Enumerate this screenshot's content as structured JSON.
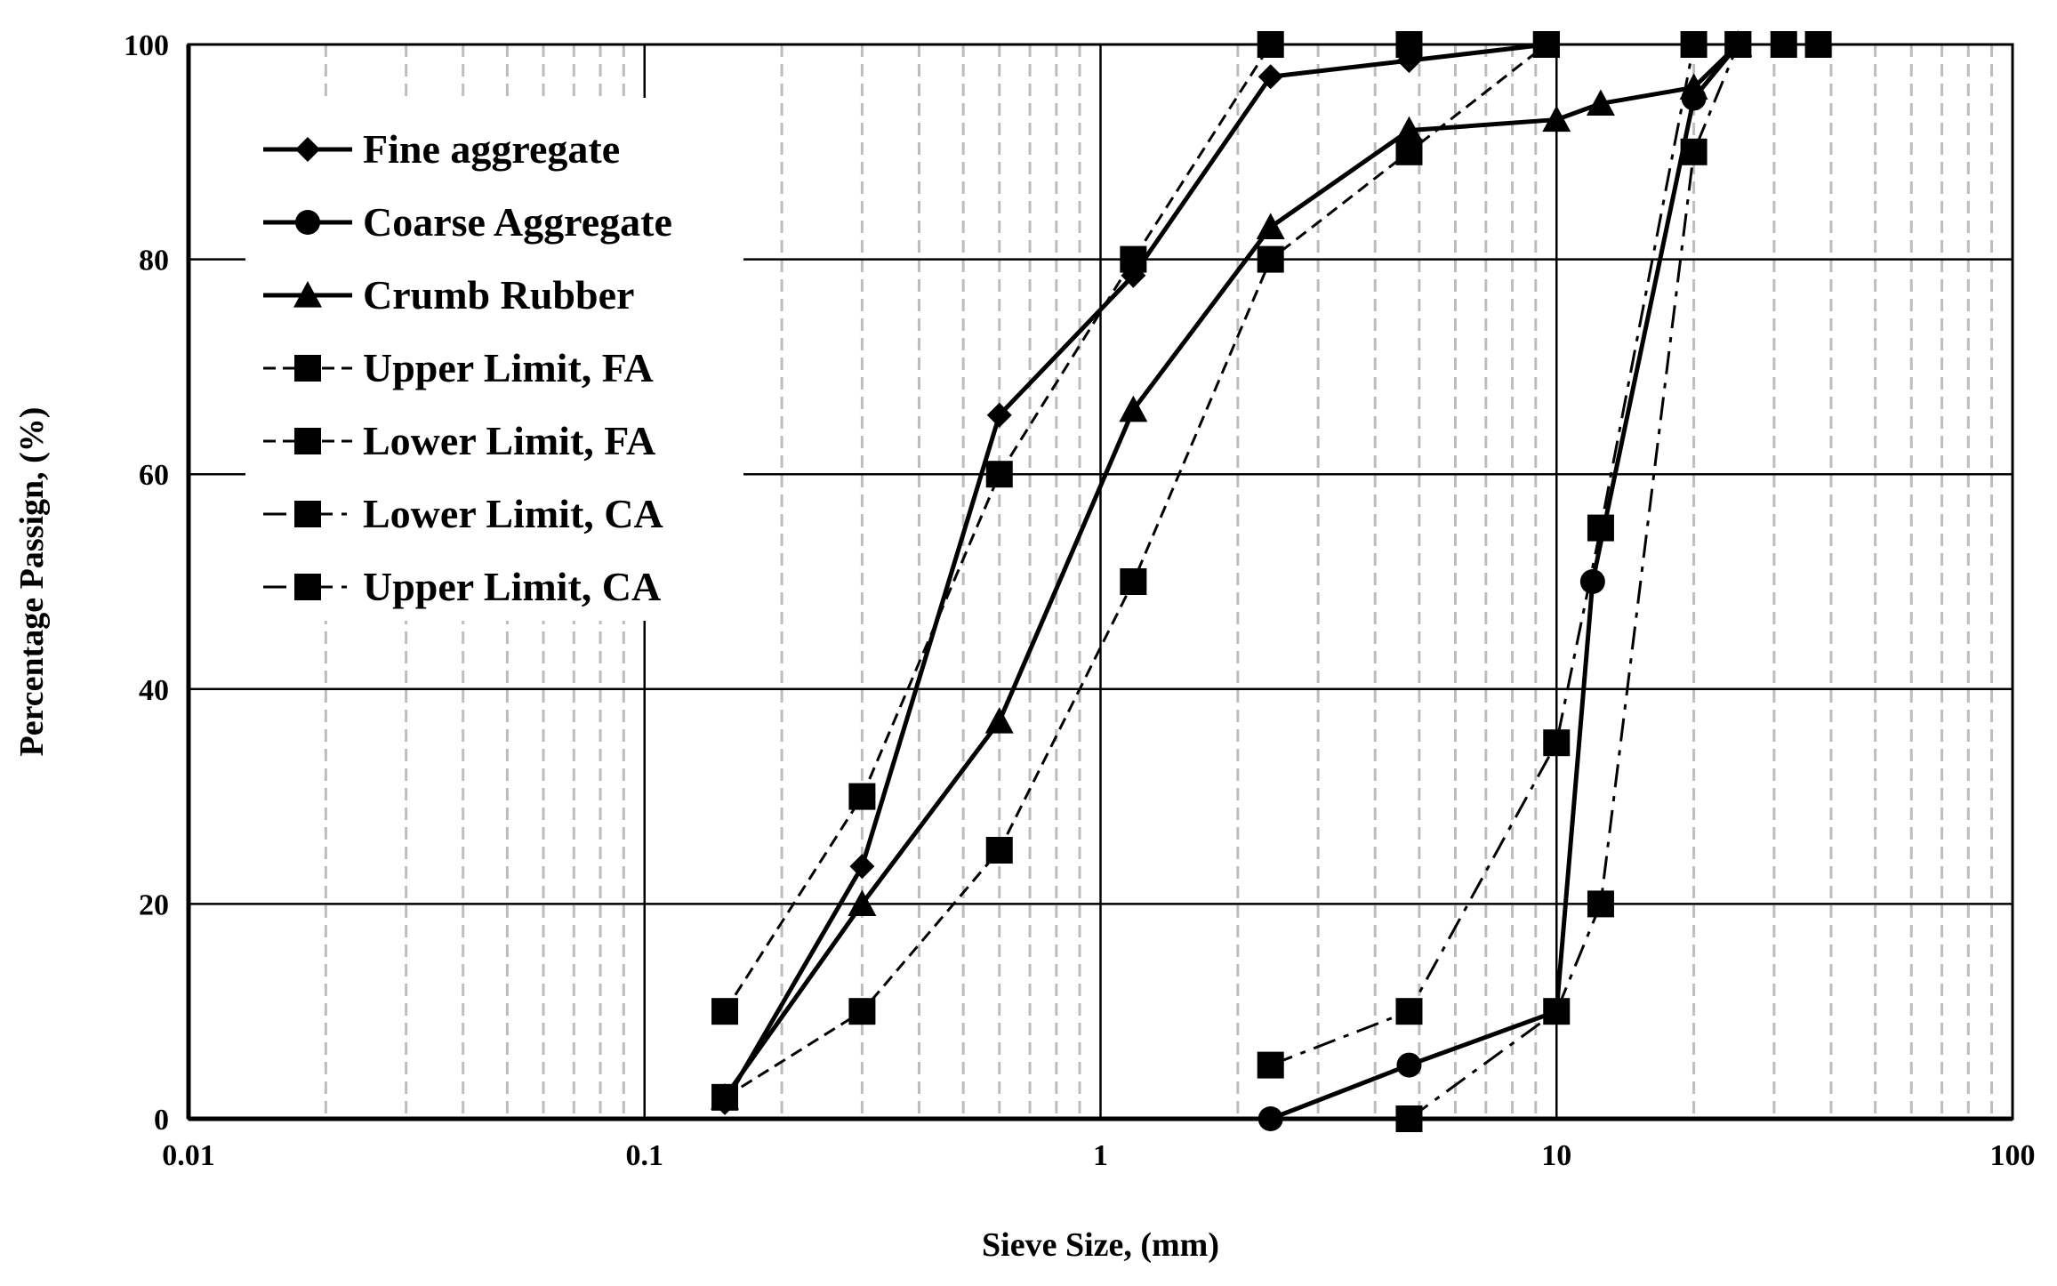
{
  "chart_data": {
    "type": "line",
    "xlabel": "Sieve Size, (mm)",
    "ylabel": "Percentage Passign, (%)",
    "xscale": "log",
    "xlim": [
      0.01,
      100
    ],
    "ylim": [
      0,
      100
    ],
    "x_ticks": [
      "0.01",
      "0.1",
      "1",
      "10",
      "100"
    ],
    "y_ticks": [
      "0",
      "20",
      "40",
      "60",
      "80",
      "100"
    ],
    "grid": "on",
    "legend_position": "top-left",
    "series": [
      {
        "name": "Fine aggregate",
        "marker": "diamond",
        "line": "solid",
        "x": [
          0.15,
          0.3,
          0.6,
          1.18,
          2.36,
          4.75,
          9.5
        ],
        "y": [
          1.5,
          23.5,
          65.5,
          78.5,
          97,
          98.5,
          100
        ]
      },
      {
        "name": "Coarse Aggregate",
        "marker": "circle",
        "line": "solid",
        "x": [
          2.36,
          4.75,
          10,
          12,
          20,
          25
        ],
        "y": [
          0,
          5,
          10,
          50,
          95,
          100
        ]
      },
      {
        "name": "Crumb Rubber",
        "marker": "triangle",
        "line": "solid",
        "x": [
          0.15,
          0.3,
          0.6,
          1.18,
          2.36,
          4.75,
          10,
          12.5,
          20,
          25
        ],
        "y": [
          2,
          20,
          37,
          66,
          83,
          92,
          93,
          94.5,
          96,
          100
        ]
      },
      {
        "name": "Upper Limit, FA",
        "marker": "square",
        "line": "dashed",
        "x": [
          0.15,
          0.3,
          0.6,
          1.18,
          2.36,
          4.75,
          9.5
        ],
        "y": [
          10,
          30,
          60,
          80,
          100,
          100,
          100
        ]
      },
      {
        "name": "Lower Limit, FA",
        "marker": "square",
        "line": "dashed",
        "x": [
          0.15,
          0.3,
          0.6,
          1.18,
          2.36,
          4.75,
          9.5
        ],
        "y": [
          2,
          10,
          25,
          50,
          80,
          90,
          100
        ]
      },
      {
        "name": "Lower Limit, CA",
        "marker": "square",
        "line": "dashdot",
        "x": [
          4.75,
          10,
          12.5,
          20,
          25,
          37.5
        ],
        "y": [
          0,
          10,
          20,
          90,
          100,
          100
        ]
      },
      {
        "name": "Upper Limit, CA",
        "marker": "square",
        "line": "dashdot",
        "x": [
          2.36,
          4.75,
          10,
          12.5,
          20,
          25,
          31.5
        ],
        "y": [
          5,
          10,
          35,
          55,
          100,
          100,
          100
        ]
      }
    ]
  }
}
